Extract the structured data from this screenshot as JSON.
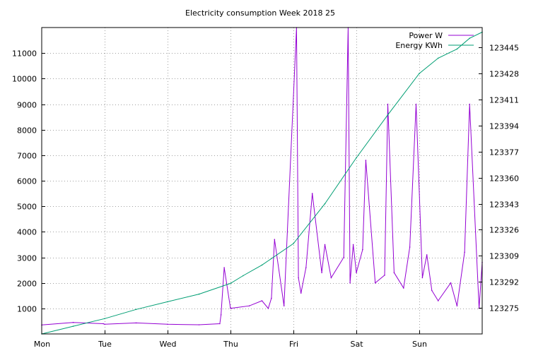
{
  "chart_data": {
    "type": "line",
    "title": "Electricity consumption Week 2018 25",
    "xlabel": "",
    "ylabel": "",
    "y2label": "",
    "grid": true,
    "legend_position": "top-right",
    "x_categories": [
      "Mon",
      "Tue",
      "Wed",
      "Thu",
      "Fri",
      "Sat",
      "Sun"
    ],
    "xlim": [
      0,
      7
    ],
    "ylim": [
      0,
      12000
    ],
    "y_ticks": [
      1000,
      2000,
      3000,
      4000,
      5000,
      6000,
      7000,
      8000,
      9000,
      10000,
      11000
    ],
    "y2lim": [
      123258,
      123458
    ],
    "y2_ticks": [
      123275,
      123292,
      123309,
      123326,
      123343,
      123360,
      123377,
      123394,
      123411,
      123428,
      123445
    ],
    "series": [
      {
        "name": "Power W",
        "color": "#9400d3",
        "axis": "left",
        "x": [
          0,
          0.5,
          0.98,
          1.0,
          1.5,
          2.0,
          2.5,
          2.83,
          2.85,
          2.9,
          3.0,
          3.3,
          3.5,
          3.6,
          3.65,
          3.7,
          3.85,
          4.05,
          4.08,
          4.12,
          4.2,
          4.3,
          4.45,
          4.5,
          4.6,
          4.8,
          4.87,
          4.9,
          4.95,
          5.0,
          5.1,
          5.15,
          5.3,
          5.45,
          5.5,
          5.6,
          5.75,
          5.85,
          5.95,
          6.05,
          6.12,
          6.2,
          6.3,
          6.5,
          6.6,
          6.72,
          6.8,
          6.95,
          7.0
        ],
        "values": [
          350,
          450,
          400,
          380,
          430,
          380,
          360,
          400,
          750,
          2600,
          1000,
          1100,
          1300,
          1000,
          1400,
          3700,
          1100,
          12000,
          2200,
          1600,
          2600,
          5500,
          2400,
          3500,
          2200,
          3000,
          12000,
          2000,
          3500,
          2400,
          3300,
          6800,
          2000,
          2300,
          9000,
          2400,
          1800,
          3400,
          9000,
          2200,
          3100,
          1700,
          1300,
          2000,
          1100,
          3200,
          9000,
          1000,
          2800
        ]
      },
      {
        "name": "Energy KWh",
        "color": "#009e73",
        "axis": "right",
        "x": [
          0,
          0.5,
          1.0,
          1.5,
          2.0,
          2.5,
          3.0,
          3.2,
          3.5,
          4.0,
          4.5,
          5.0,
          5.5,
          6.0,
          6.3,
          6.6,
          6.8,
          7.0
        ],
        "values": [
          123258,
          123263,
          123268,
          123274,
          123279,
          123284,
          123291,
          123296,
          123303,
          123317,
          123343,
          123373,
          123401,
          123428,
          123438,
          123444,
          123451,
          123455
        ]
      }
    ]
  }
}
